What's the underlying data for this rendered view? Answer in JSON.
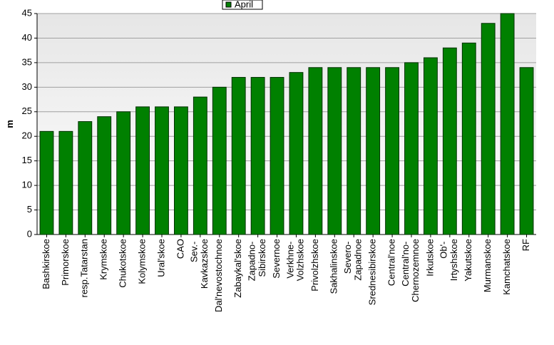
{
  "chart_data": {
    "type": "bar",
    "y_label": "m",
    "categories": [
      "Bashkirskoe",
      "Primorskoe",
      "resp.Tatarstan",
      "Krymskoe",
      "Chukotskoe",
      "Kolymskoe",
      "Ural'skoe",
      "CAO",
      "Sev.-\nKavkazskoe",
      "Dal'nevostochnoe",
      "Zabaykal'skoe",
      "Zapadno-\nSibirskoe",
      "Severnoe",
      "Verkhne-\nVolzhskoe",
      "Privolzhskoe",
      "Sakhalinskoe",
      "Severo-\nZapadnoe",
      "Srednesibirskoe",
      "Central'noe",
      "Central'no-\nChernozemnoe",
      "Irkutskoe",
      "Ob'-\nIrtyshskoe",
      "Yakutskoe",
      "Murmanskoe",
      "Kamchatskoe",
      "RF"
    ],
    "series": [
      {
        "name": "April",
        "color": "#008000",
        "values": [
          21,
          21,
          23,
          24,
          25,
          26,
          26,
          26,
          28,
          30,
          32,
          32,
          32,
          33,
          34,
          34,
          34,
          34,
          34,
          35,
          36,
          38,
          39,
          43,
          45,
          34
        ]
      }
    ],
    "ylim": [
      0,
      45
    ],
    "yticks": [
      0,
      5,
      10,
      15,
      20,
      25,
      30,
      35,
      40,
      45
    ],
    "grid": true,
    "legend": "top"
  }
}
